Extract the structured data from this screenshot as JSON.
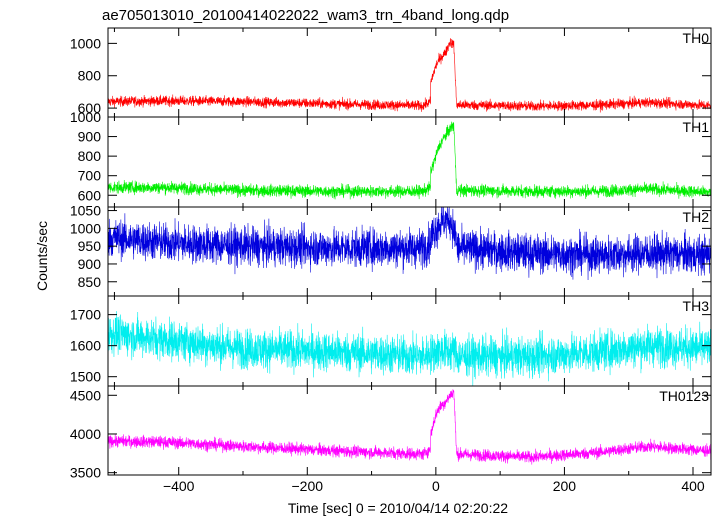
{
  "chart_data": {
    "type": "line",
    "title": "ae705013010_20100414022022_wam3_trn_4band_long.qdp",
    "xlabel": "Time [sec] 0 = 2010/04/14 02:20:22",
    "ylabel": "Counts/sec",
    "xlim": [
      -510,
      428
    ],
    "x_ticks": [
      -400,
      -200,
      0,
      200,
      400
    ],
    "x_tick_labels": [
      "−400",
      "−200",
      "0",
      "200",
      "400"
    ],
    "legend_position": "top-right inside each panel",
    "grid": false,
    "panels": [
      {
        "name": "TH0",
        "color": "#ff0000",
        "ylim": [
          545,
          1095
        ],
        "y_ticks": [
          600,
          800,
          1000
        ],
        "y_tick_labels": [
          "600",
          "800",
          "1000"
        ],
        "baseline": [
          [
            -510,
            640
          ],
          [
            -420,
            645
          ],
          [
            -300,
            640
          ],
          [
            -150,
            625
          ],
          [
            -20,
            615
          ],
          [
            -8,
            640
          ]
        ],
        "burst": [
          [
            -8,
            760
          ],
          [
            0,
            860
          ],
          [
            5,
            900
          ],
          [
            10,
            920
          ],
          [
            16,
            950
          ],
          [
            22,
            1010
          ],
          [
            28,
            990
          ],
          [
            32,
            640
          ]
        ],
        "tail": [
          [
            32,
            620
          ],
          [
            150,
            612
          ],
          [
            250,
            618
          ],
          [
            330,
            635
          ],
          [
            428,
            615
          ]
        ],
        "noise": 22
      },
      {
        "name": "TH1",
        "color": "#00ee00",
        "ylim": [
          540,
          1000
        ],
        "y_ticks": [
          600,
          700,
          800,
          900,
          1000
        ],
        "y_tick_labels": [
          "600",
          "700",
          "800",
          "900",
          "1000"
        ],
        "baseline": [
          [
            -510,
            640
          ],
          [
            -420,
            640
          ],
          [
            -300,
            625
          ],
          [
            -150,
            620
          ],
          [
            -20,
            620
          ],
          [
            -8,
            640
          ]
        ],
        "burst": [
          [
            -8,
            720
          ],
          [
            0,
            800
          ],
          [
            5,
            850
          ],
          [
            10,
            880
          ],
          [
            16,
            910
          ],
          [
            22,
            940
          ],
          [
            28,
            960
          ],
          [
            32,
            640
          ]
        ],
        "tail": [
          [
            32,
            625
          ],
          [
            150,
            620
          ],
          [
            250,
            620
          ],
          [
            330,
            632
          ],
          [
            428,
            615
          ]
        ],
        "noise": 22
      },
      {
        "name": "TH2",
        "color": "#0000dd",
        "ylim": [
          810,
          1060
        ],
        "y_ticks": [
          850,
          900,
          950,
          1000,
          1050
        ],
        "y_tick_labels": [
          "850",
          "900",
          "950",
          "1000",
          "1050"
        ],
        "baseline": [
          [
            -510,
            975
          ],
          [
            -420,
            960
          ],
          [
            -300,
            950
          ],
          [
            -150,
            945
          ],
          [
            -20,
            945
          ],
          [
            -8,
            960
          ]
        ],
        "burst": [
          [
            -8,
            975
          ],
          [
            0,
            1000
          ],
          [
            10,
            1020
          ],
          [
            22,
            1025
          ],
          [
            32,
            970
          ]
        ],
        "tail": [
          [
            32,
            945
          ],
          [
            150,
            930
          ],
          [
            250,
            925
          ],
          [
            330,
            930
          ],
          [
            428,
            925
          ]
        ],
        "noise": 38
      },
      {
        "name": "TH3",
        "color": "#00eeee",
        "ylim": [
          1470,
          1760
        ],
        "y_ticks": [
          1500,
          1600,
          1700
        ],
        "y_tick_labels": [
          "1500",
          "1600",
          "1700"
        ],
        "baseline": [
          [
            -510,
            1640
          ],
          [
            -420,
            1620
          ],
          [
            -300,
            1590
          ],
          [
            -150,
            1580
          ],
          [
            -20,
            1565
          ],
          [
            -8,
            1575
          ]
        ],
        "burst": [
          [
            -8,
            1575
          ],
          [
            10,
            1585
          ],
          [
            32,
            1580
          ]
        ],
        "tail": [
          [
            32,
            1565
          ],
          [
            150,
            1565
          ],
          [
            250,
            1580
          ],
          [
            330,
            1600
          ],
          [
            428,
            1590
          ]
        ],
        "noise": 45
      },
      {
        "name": "TH0123",
        "color": "#ff00ff",
        "ylim": [
          3470,
          4620
        ],
        "y_ticks": [
          3500,
          4000,
          4500
        ],
        "y_tick_labels": [
          "3500",
          "4000",
          "4500"
        ],
        "baseline": [
          [
            -510,
            3910
          ],
          [
            -420,
            3895
          ],
          [
            -300,
            3840
          ],
          [
            -150,
            3780
          ],
          [
            -20,
            3740
          ],
          [
            -8,
            3800
          ]
        ],
        "burst": [
          [
            -8,
            4000
          ],
          [
            0,
            4250
          ],
          [
            5,
            4330
          ],
          [
            10,
            4380
          ],
          [
            16,
            4420
          ],
          [
            22,
            4500
          ],
          [
            28,
            4550
          ],
          [
            32,
            3800
          ]
        ],
        "tail": [
          [
            32,
            3740
          ],
          [
            150,
            3700
          ],
          [
            250,
            3760
          ],
          [
            330,
            3840
          ],
          [
            428,
            3780
          ]
        ],
        "noise": 55
      }
    ]
  }
}
